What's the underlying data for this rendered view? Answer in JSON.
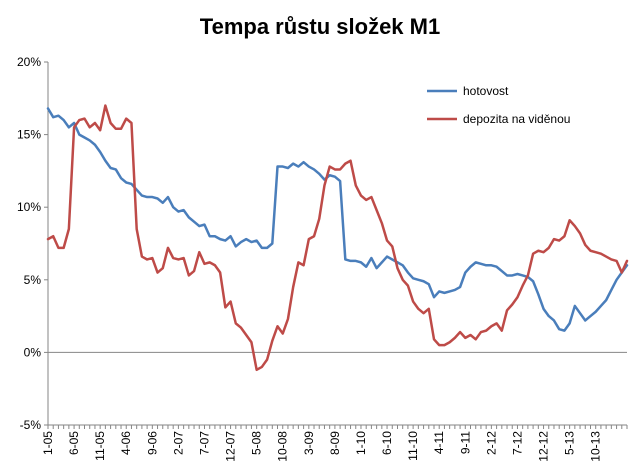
{
  "chart_data": {
    "type": "line",
    "title": "Tempa růstu složek M1",
    "xlabel": "",
    "ylabel": "",
    "ylim": [
      -5,
      20
    ],
    "y_ticks": [
      -5,
      0,
      5,
      10,
      15,
      20
    ],
    "y_tick_labels": [
      "-5%",
      "0%",
      "5%",
      "10%",
      "15%",
      "20%"
    ],
    "x_tick_labels": [
      "1-05",
      "6-05",
      "11-05",
      "4-06",
      "9-06",
      "2-07",
      "7-07",
      "12-07",
      "5-08",
      "10-08",
      "3-09",
      "8-09",
      "1-10",
      "6-10",
      "11-10",
      "4-11",
      "9-11",
      "2-12",
      "7-12",
      "12-12",
      "5-13",
      "10-13"
    ],
    "grid": false,
    "legend_position": "top-right",
    "series": [
      {
        "name": "hotovost",
        "color": "#4a7ebb",
        "values": [
          16.8,
          16.2,
          16.3,
          16.0,
          15.5,
          15.8,
          15.0,
          14.8,
          14.6,
          14.3,
          13.8,
          13.2,
          12.7,
          12.6,
          12.0,
          11.7,
          11.6,
          11.2,
          10.8,
          10.7,
          10.7,
          10.6,
          10.3,
          10.7,
          10.0,
          9.7,
          9.8,
          9.3,
          9.0,
          8.7,
          8.8,
          8.0,
          8.0,
          7.8,
          7.7,
          8.0,
          7.3,
          7.6,
          7.8,
          7.6,
          7.7,
          7.2,
          7.2,
          7.5,
          12.8,
          12.8,
          12.7,
          13.0,
          12.8,
          13.1,
          12.8,
          12.6,
          12.3,
          11.9,
          12.2,
          12.1,
          11.8,
          6.4,
          6.3,
          6.3,
          6.2,
          5.9,
          6.5,
          5.8,
          6.2,
          6.6,
          6.4,
          6.2,
          6.0,
          5.5,
          5.1,
          5.0,
          4.9,
          4.7,
          3.8,
          4.2,
          4.1,
          4.2,
          4.3,
          4.5,
          5.5,
          5.9,
          6.2,
          6.1,
          6.0,
          6.0,
          5.9,
          5.6,
          5.3,
          5.3,
          5.4,
          5.3,
          5.2,
          4.9,
          4.0,
          3.0,
          2.5,
          2.2,
          1.6,
          1.5,
          2.0,
          3.2,
          2.7,
          2.2,
          2.5,
          2.8,
          3.2,
          3.6,
          4.3,
          5.0,
          5.5,
          6.0
        ]
      },
      {
        "name": "depozita na viděnou",
        "color": "#be4b48",
        "values": [
          7.8,
          8.0,
          7.2,
          7.2,
          8.5,
          15.5,
          16.0,
          16.1,
          15.5,
          15.8,
          15.3,
          17.0,
          15.8,
          15.4,
          15.4,
          16.1,
          15.8,
          8.5,
          6.6,
          6.4,
          6.5,
          5.5,
          5.8,
          7.2,
          6.5,
          6.4,
          6.5,
          5.3,
          5.6,
          6.9,
          6.1,
          6.2,
          6.0,
          5.5,
          3.1,
          3.5,
          2.0,
          1.7,
          1.2,
          0.7,
          -1.2,
          -1.0,
          -0.5,
          0.8,
          1.8,
          1.3,
          2.3,
          4.5,
          6.2,
          6.0,
          7.8,
          8.0,
          9.2,
          11.5,
          12.8,
          12.6,
          12.6,
          13.0,
          13.2,
          11.5,
          10.8,
          10.5,
          10.7,
          9.8,
          8.9,
          7.7,
          7.3,
          5.8,
          5.0,
          4.6,
          3.5,
          3.0,
          2.7,
          3.0,
          0.9,
          0.5,
          0.5,
          0.7,
          1.0,
          1.4,
          1.0,
          1.2,
          0.9,
          1.4,
          1.5,
          1.8,
          2.0,
          1.5,
          2.9,
          3.3,
          3.8,
          4.6,
          5.3,
          6.8,
          7.0,
          6.9,
          7.2,
          7.8,
          7.7,
          8.0,
          9.1,
          8.7,
          8.2,
          7.4,
          7.0,
          6.9,
          6.8,
          6.6,
          6.4,
          6.3,
          5.5,
          6.3
        ]
      }
    ]
  }
}
